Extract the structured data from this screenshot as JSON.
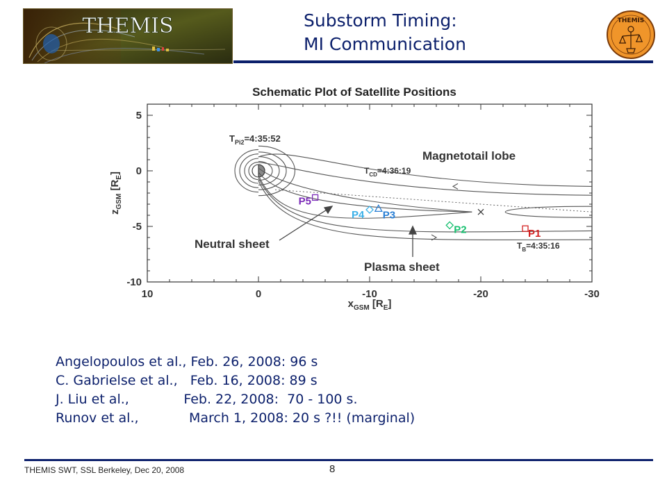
{
  "slide": {
    "logo_text": "THEMIS",
    "emblem_text": "THEMIS",
    "title_line1": "Substorm Timing:",
    "title_line2": "MI Communication",
    "page_number": "8",
    "footer": "THEMIS SWT, SSL Berkeley, Dec 20, 2008",
    "body_lines": [
      "Angelopoulos et al., Feb. 26, 2008: 96 s",
      "C. Gabrielse et al.,   Feb. 16, 2008: 89 s",
      "J. Liu et al.,             Feb. 22, 2008:  70 - 100 s.",
      "Runov et al.,            March 1, 2008: 20 s ?!! (marginal)"
    ],
    "colors": {
      "title": "#0b1f6b",
      "rule": "#0b1f6b",
      "emblem": "#f0952a"
    }
  },
  "chart_data": {
    "type": "scatter",
    "title": "Schematic Plot of Satellite Positions",
    "xlabel": "x",
    "xlabel_sub": "GSM",
    "xlabel_unit": " [R",
    "xlabel_unit_sub": "E",
    "xlabel_end": "]",
    "ylabel": "z",
    "ylabel_sub": "GSM",
    "ylabel_unit": " [R",
    "ylabel_unit_sub": "E",
    "ylabel_end": "]",
    "xlim": [
      10,
      -30
    ],
    "ylim": [
      -10,
      6
    ],
    "xticks": [
      10,
      0,
      -10,
      -20,
      -30
    ],
    "yticks": [
      5,
      0,
      -5,
      -10
    ],
    "tick_labels_x": [
      "10",
      "0",
      "-10",
      "-20",
      "-30"
    ],
    "tick_labels_y": [
      "5",
      "0",
      "-5",
      "-10"
    ],
    "points": [
      {
        "name": "P1",
        "x": -24.0,
        "y": -5.2,
        "marker": "square",
        "color": "#d32020"
      },
      {
        "name": "P2",
        "x": -17.2,
        "y": -4.9,
        "marker": "diamond",
        "color": "#18c070"
      },
      {
        "name": "P3",
        "x": -10.8,
        "y": -3.4,
        "marker": "triangle",
        "color": "#2a7fd4"
      },
      {
        "name": "P4",
        "x": -10.0,
        "y": -3.5,
        "marker": "diamond",
        "color": "#3ab0e8"
      },
      {
        "name": "P5",
        "x": -5.1,
        "y": -2.4,
        "marker": "square",
        "color": "#7a2ab8"
      }
    ],
    "x_mark": {
      "x": -20.0,
      "y": -3.7
    },
    "annotations": {
      "tpi2_main": "T",
      "tpi2_sub": "Pi2",
      "tpi2_val": "=4:35:52",
      "tcd_main": "T",
      "tcd_sub": "CD",
      "tcd_val": "=4:36:19",
      "tb_main": "T",
      "tb_sub": "B",
      "tb_val": "=4:35:16",
      "lobe": "Magnetotail lobe",
      "neutral": "Neutral sheet",
      "plasma": "Plasma sheet"
    }
  }
}
